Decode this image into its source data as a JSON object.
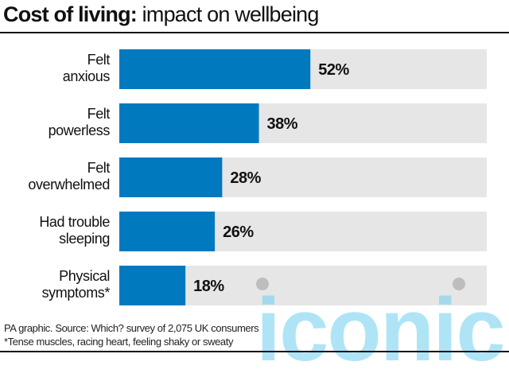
{
  "title_bold": "Cost of living:",
  "title_rest": " impact on wellbeing",
  "footer": {
    "source": "PA graphic. Source: Which? survey of 2,075 UK consumers",
    "note": "*Tense muscles, racing heart, feeling shaky or sweaty"
  },
  "watermark": "iconic",
  "colors": {
    "bar": "#0079BF",
    "track": "#E6E6E6",
    "text": "#111111"
  },
  "chart_data": {
    "type": "bar",
    "orientation": "horizontal",
    "categories": [
      [
        "Felt",
        "anxious"
      ],
      [
        "Felt",
        "powerless"
      ],
      [
        "Felt",
        "overwhelmed"
      ],
      [
        "Had trouble",
        "sleeping"
      ],
      [
        "Physical",
        "symptoms*"
      ]
    ],
    "values": [
      52,
      38,
      28,
      26,
      18
    ],
    "labels": [
      "52%",
      "38%",
      "28%",
      "26%",
      "18%"
    ],
    "xlim": [
      0,
      100
    ],
    "grid": false
  }
}
